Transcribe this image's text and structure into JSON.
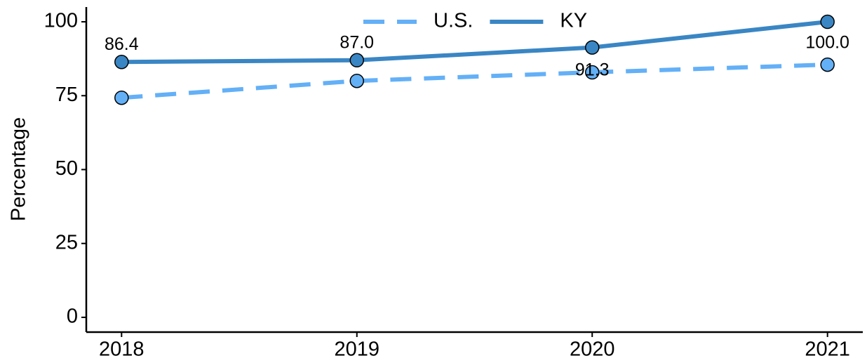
{
  "chart_data": {
    "type": "line",
    "y_label": "Percentage",
    "x": [
      2018,
      2019,
      2020,
      2021
    ],
    "xlim": [
      2017.85,
      2021.15
    ],
    "xticks": [
      2018,
      2019,
      2020,
      2021
    ],
    "ylim": [
      -5,
      105
    ],
    "yticks": [
      0,
      25,
      50,
      75,
      100
    ],
    "legend": "top",
    "series": [
      {
        "name": "U.S.",
        "color": "#63b0f7",
        "dash": true,
        "values": [
          74.3,
          80.0,
          82.9,
          85.5
        ]
      },
      {
        "name": "KY",
        "color": "#3a86c4",
        "dash": false,
        "values": [
          86.4,
          87.0,
          91.3,
          100.0
        ],
        "value_labels": [
          "86.4",
          "87.0",
          "91.3",
          "100.0"
        ]
      }
    ]
  }
}
